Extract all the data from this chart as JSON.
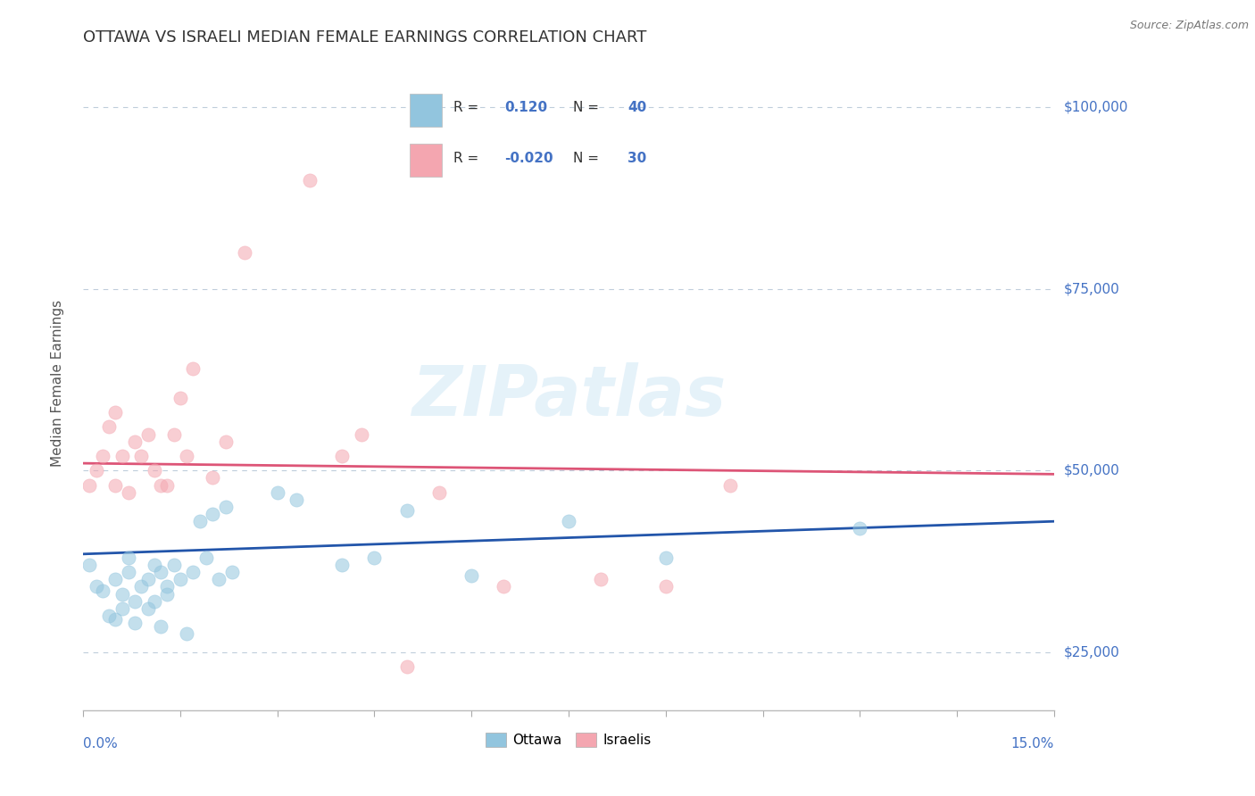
{
  "title": "OTTAWA VS ISRAELI MEDIAN FEMALE EARNINGS CORRELATION CHART",
  "source": "Source: ZipAtlas.com",
  "ylabel": "Median Female Earnings",
  "ytick_labels": [
    "$25,000",
    "$50,000",
    "$75,000",
    "$100,000"
  ],
  "ytick_values": [
    25000,
    50000,
    75000,
    100000
  ],
  "xlim": [
    0.0,
    0.15
  ],
  "ylim": [
    17000,
    107000
  ],
  "legend_entries": [
    {
      "label": "Ottawa",
      "color": "#92c5de",
      "R": "0.120",
      "N": "40"
    },
    {
      "label": "Israelis",
      "color": "#f4a6b0",
      "R": "-0.020",
      "N": "30"
    }
  ],
  "watermark": "ZIPatlas",
  "ottawa_color": "#92c5de",
  "israeli_color": "#f4a6b0",
  "ottawa_dots": [
    [
      0.001,
      37000
    ],
    [
      0.002,
      34000
    ],
    [
      0.003,
      33500
    ],
    [
      0.004,
      30000
    ],
    [
      0.005,
      35000
    ],
    [
      0.005,
      29500
    ],
    [
      0.006,
      31000
    ],
    [
      0.006,
      33000
    ],
    [
      0.007,
      36000
    ],
    [
      0.007,
      38000
    ],
    [
      0.008,
      29000
    ],
    [
      0.008,
      32000
    ],
    [
      0.009,
      34000
    ],
    [
      0.01,
      31000
    ],
    [
      0.01,
      35000
    ],
    [
      0.011,
      37000
    ],
    [
      0.011,
      32000
    ],
    [
      0.012,
      28500
    ],
    [
      0.012,
      36000
    ],
    [
      0.013,
      34000
    ],
    [
      0.013,
      33000
    ],
    [
      0.014,
      37000
    ],
    [
      0.015,
      35000
    ],
    [
      0.016,
      27500
    ],
    [
      0.017,
      36000
    ],
    [
      0.018,
      43000
    ],
    [
      0.019,
      38000
    ],
    [
      0.02,
      44000
    ],
    [
      0.021,
      35000
    ],
    [
      0.022,
      45000
    ],
    [
      0.023,
      36000
    ],
    [
      0.03,
      47000
    ],
    [
      0.033,
      46000
    ],
    [
      0.04,
      37000
    ],
    [
      0.045,
      38000
    ],
    [
      0.05,
      44500
    ],
    [
      0.06,
      35500
    ],
    [
      0.075,
      43000
    ],
    [
      0.09,
      38000
    ],
    [
      0.12,
      42000
    ]
  ],
  "israeli_dots": [
    [
      0.001,
      48000
    ],
    [
      0.002,
      50000
    ],
    [
      0.003,
      52000
    ],
    [
      0.004,
      56000
    ],
    [
      0.005,
      58000
    ],
    [
      0.005,
      48000
    ],
    [
      0.006,
      52000
    ],
    [
      0.007,
      47000
    ],
    [
      0.008,
      54000
    ],
    [
      0.009,
      52000
    ],
    [
      0.01,
      55000
    ],
    [
      0.011,
      50000
    ],
    [
      0.012,
      48000
    ],
    [
      0.013,
      48000
    ],
    [
      0.014,
      55000
    ],
    [
      0.015,
      60000
    ],
    [
      0.016,
      52000
    ],
    [
      0.017,
      64000
    ],
    [
      0.02,
      49000
    ],
    [
      0.022,
      54000
    ],
    [
      0.025,
      80000
    ],
    [
      0.035,
      90000
    ],
    [
      0.04,
      52000
    ],
    [
      0.043,
      55000
    ],
    [
      0.05,
      23000
    ],
    [
      0.055,
      47000
    ],
    [
      0.065,
      34000
    ],
    [
      0.08,
      35000
    ],
    [
      0.09,
      34000
    ],
    [
      0.1,
      48000
    ]
  ],
  "title_color": "#333333",
  "axis_label_color": "#4472c4",
  "grid_color": "#b8c8d8",
  "ottawa_line_color": "#2255aa",
  "israeli_line_color": "#dd5577",
  "background_color": "#ffffff",
  "title_fontsize": 13,
  "axis_fontsize": 11,
  "tick_fontsize": 11,
  "dot_size": 120,
  "dot_alpha": 0.55,
  "ottawa_line_y0": 38500,
  "ottawa_line_y1": 43000,
  "israeli_line_y0": 51000,
  "israeli_line_y1": 49500
}
